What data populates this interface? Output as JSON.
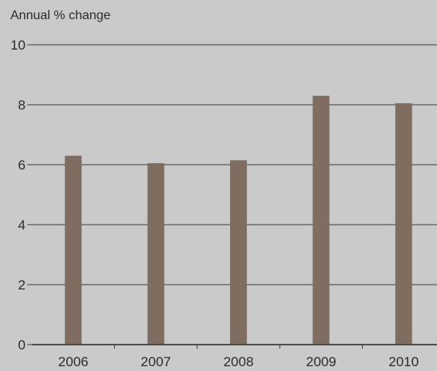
{
  "chart_data": {
    "type": "bar",
    "title": "",
    "xlabel": "",
    "ylabel": "Annual % change",
    "categories": [
      "2006",
      "2007",
      "2008",
      "2009",
      "2010"
    ],
    "values": [
      6.3,
      6.05,
      6.15,
      8.3,
      8.05
    ],
    "ylim": [
      0,
      10
    ],
    "yticks": [
      0,
      2,
      4,
      6,
      8,
      10
    ],
    "grid": true,
    "colors": {
      "background": "#cbcaca",
      "bar": "#7f6e5f",
      "grid": "#3c3c3c",
      "text": "#2b2b2b"
    }
  }
}
